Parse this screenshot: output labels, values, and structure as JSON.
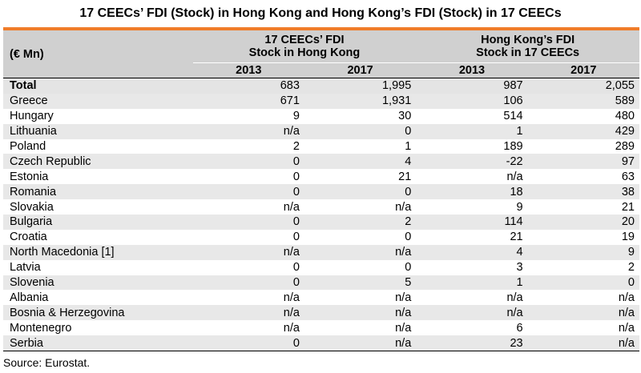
{
  "title": "17 CEECs’ FDI (Stock) in Hong Kong and Hong Kong’s FDI (Stock) in 17 CEECs",
  "header": {
    "unit": "(€ Mn)",
    "group1": "17 CEECs’ FDI Stock in Hong Kong",
    "group2": "Hong Kong’s FDI Stock in 17 CEECs",
    "years": [
      "2013",
      "2017",
      "2013",
      "2017"
    ]
  },
  "rows": [
    {
      "country": "Total",
      "values": [
        "683",
        "1,995",
        "987",
        "2,055"
      ]
    },
    {
      "country": "Greece",
      "values": [
        "671",
        "1,931",
        "106",
        "589"
      ]
    },
    {
      "country": "Hungary",
      "values": [
        "9",
        "30",
        "514",
        "480"
      ]
    },
    {
      "country": "Lithuania",
      "values": [
        "n/a",
        "0",
        "1",
        "429"
      ]
    },
    {
      "country": "Poland",
      "values": [
        "2",
        "1",
        "189",
        "289"
      ]
    },
    {
      "country": "Czech Republic",
      "values": [
        "0",
        "4",
        "-22",
        "97"
      ]
    },
    {
      "country": "Estonia",
      "values": [
        "0",
        "21",
        "n/a",
        "63"
      ]
    },
    {
      "country": "Romania",
      "values": [
        "0",
        "0",
        "18",
        "38"
      ]
    },
    {
      "country": "Slovakia",
      "values": [
        "n/a",
        "n/a",
        "9",
        "21"
      ]
    },
    {
      "country": "Bulgaria",
      "values": [
        "0",
        "2",
        "114",
        "20"
      ]
    },
    {
      "country": "Croatia",
      "values": [
        "0",
        "0",
        "21",
        "19"
      ]
    },
    {
      "country": "North Macedonia [1]",
      "values": [
        "n/a",
        "n/a",
        "4",
        "9"
      ]
    },
    {
      "country": "Latvia",
      "values": [
        "0",
        "0",
        "3",
        "2"
      ]
    },
    {
      "country": "Slovenia",
      "values": [
        "0",
        "5",
        "1",
        "0"
      ]
    },
    {
      "country": "Albania",
      "values": [
        "n/a",
        "n/a",
        "n/a",
        "n/a"
      ]
    },
    {
      "country": "Bosnia & Herzegovina",
      "values": [
        "n/a",
        "n/a",
        "n/a",
        "n/a"
      ]
    },
    {
      "country": "Montenegro",
      "values": [
        "n/a",
        "n/a",
        "6",
        "n/a"
      ]
    },
    {
      "country": "Serbia",
      "values": [
        "0",
        "n/a",
        "23",
        "n/a"
      ]
    }
  ],
  "source": "Source: Eurostat.",
  "colors": {
    "accent_bar": "#f07c2a",
    "header_bg": "#d0d0d0",
    "stripe_bg": "#e8e8e8"
  }
}
